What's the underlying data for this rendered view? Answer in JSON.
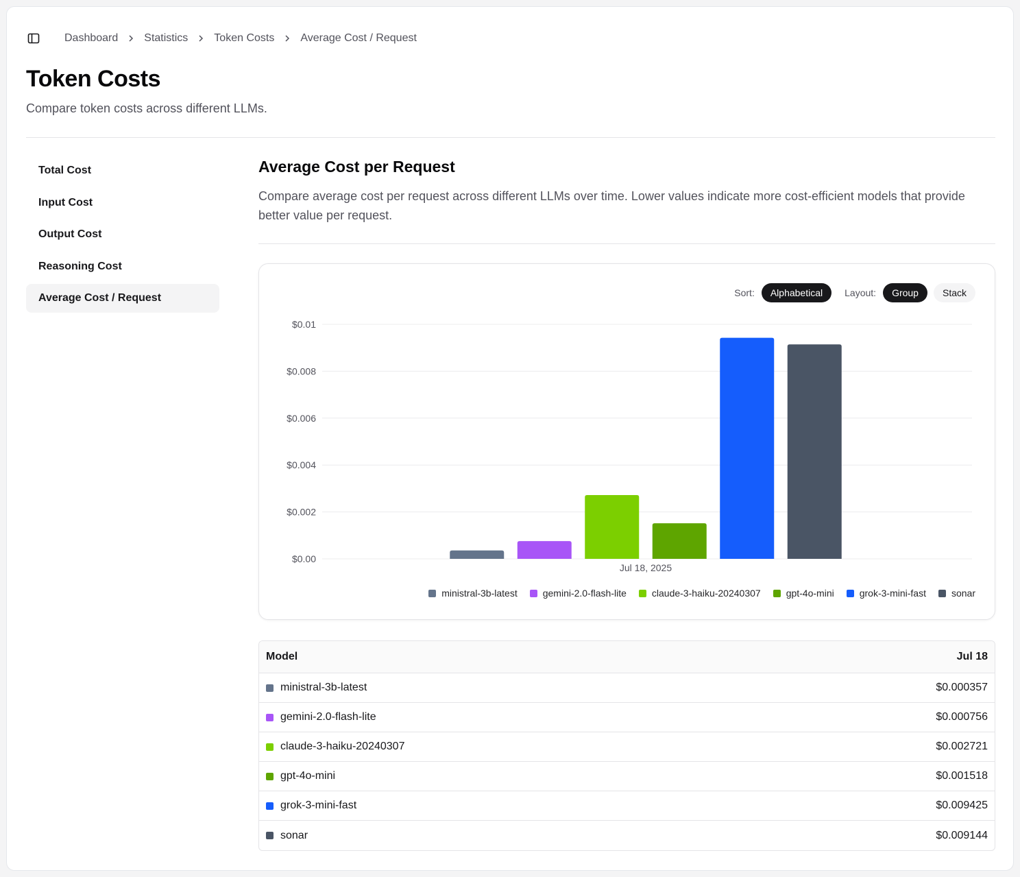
{
  "breadcrumb": [
    "Dashboard",
    "Statistics",
    "Token Costs",
    "Average Cost / Request"
  ],
  "page": {
    "title": "Token Costs",
    "subtitle": "Compare token costs across different LLMs."
  },
  "nav": [
    {
      "label": "Total Cost",
      "active": false
    },
    {
      "label": "Input Cost",
      "active": false
    },
    {
      "label": "Output Cost",
      "active": false
    },
    {
      "label": "Reasoning Cost",
      "active": false
    },
    {
      "label": "Average Cost / Request",
      "active": true
    }
  ],
  "section": {
    "title": "Average Cost per Request",
    "description": "Compare average cost per request across different LLMs over time. Lower values indicate more cost-efficient models that provide better value per request."
  },
  "controls": {
    "sort_label": "Sort:",
    "sort_value": "Alphabetical",
    "layout_label": "Layout:",
    "layout_group": "Group",
    "layout_stack": "Stack",
    "layout_selected": "Group"
  },
  "chart_data": {
    "type": "bar",
    "categories": [
      "Jul 18, 2025"
    ],
    "series": [
      {
        "name": "ministral-3b-latest",
        "color": "#64748b",
        "values": [
          0.000357
        ]
      },
      {
        "name": "gemini-2.0-flash-lite",
        "color": "#a855f7",
        "values": [
          0.000756
        ]
      },
      {
        "name": "claude-3-haiku-20240307",
        "color": "#7ccf00",
        "values": [
          0.002721
        ]
      },
      {
        "name": "gpt-4o-mini",
        "color": "#5ea500",
        "values": [
          0.001518
        ]
      },
      {
        "name": "grok-3-mini-fast",
        "color": "#155dfc",
        "values": [
          0.009425
        ]
      },
      {
        "name": "sonar",
        "color": "#4a5565",
        "values": [
          0.009144
        ]
      }
    ],
    "y_ticks": [
      "$0.00",
      "$0.002",
      "$0.004",
      "$0.006",
      "$0.008",
      "$0.01"
    ],
    "ylim": [
      0,
      0.01
    ],
    "grid": true,
    "legend": "bottom-right"
  },
  "table": {
    "header_model": "Model",
    "header_date": "Jul 18",
    "rows": [
      {
        "model": "ministral-3b-latest",
        "value": "$0.000357",
        "color": "#64748b"
      },
      {
        "model": "gemini-2.0-flash-lite",
        "value": "$0.000756",
        "color": "#a855f7"
      },
      {
        "model": "claude-3-haiku-20240307",
        "value": "$0.002721",
        "color": "#7ccf00"
      },
      {
        "model": "gpt-4o-mini",
        "value": "$0.001518",
        "color": "#5ea500"
      },
      {
        "model": "grok-3-mini-fast",
        "value": "$0.009425",
        "color": "#155dfc"
      },
      {
        "model": "sonar",
        "value": "$0.009144",
        "color": "#4a5565"
      }
    ]
  }
}
